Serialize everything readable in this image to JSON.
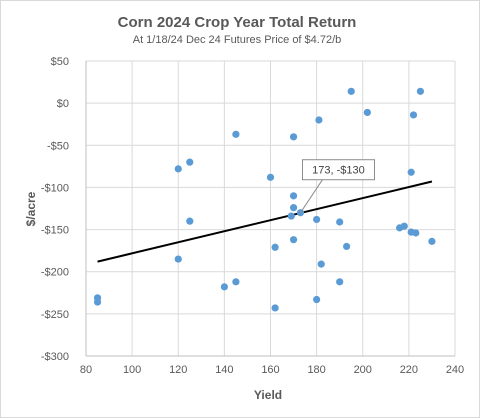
{
  "chart_data": {
    "type": "scatter",
    "title": "Corn 2024  Crop Year Total Return",
    "subtitle": "At 1/18/24 Dec 24 Futures Price of $4.72/b",
    "xlabel": "Yield",
    "ylabel": "$/acre",
    "xlim": [
      80,
      240
    ],
    "ylim": [
      -300,
      50
    ],
    "xticks": [
      80,
      100,
      120,
      140,
      160,
      180,
      200,
      220,
      240
    ],
    "yticks": [
      50,
      0,
      -50,
      -100,
      -150,
      -200,
      -250,
      -300
    ],
    "ytick_labels": [
      "$50",
      "$0",
      "-$50",
      "-$100",
      "-$150",
      "-$200",
      "-$250",
      "-$300"
    ],
    "grid": true,
    "point_color": "#5b9bd5",
    "trendline_color": "#000000",
    "points": [
      {
        "x": 85,
        "y": -231
      },
      {
        "x": 85,
        "y": -236
      },
      {
        "x": 120,
        "y": -78
      },
      {
        "x": 120,
        "y": -185
      },
      {
        "x": 125,
        "y": -70
      },
      {
        "x": 125,
        "y": -140
      },
      {
        "x": 140,
        "y": -218
      },
      {
        "x": 145,
        "y": -37
      },
      {
        "x": 145,
        "y": -212
      },
      {
        "x": 160,
        "y": -88
      },
      {
        "x": 162,
        "y": -171
      },
      {
        "x": 162,
        "y": -243
      },
      {
        "x": 169,
        "y": -134
      },
      {
        "x": 170,
        "y": -40
      },
      {
        "x": 170,
        "y": -110
      },
      {
        "x": 170,
        "y": -124
      },
      {
        "x": 170,
        "y": -162
      },
      {
        "x": 173,
        "y": -130
      },
      {
        "x": 180,
        "y": -138
      },
      {
        "x": 180,
        "y": -233
      },
      {
        "x": 181,
        "y": -20
      },
      {
        "x": 182,
        "y": -191
      },
      {
        "x": 190,
        "y": -141
      },
      {
        "x": 190,
        "y": -212
      },
      {
        "x": 193,
        "y": -170
      },
      {
        "x": 195,
        "y": 14
      },
      {
        "x": 202,
        "y": -11
      },
      {
        "x": 216,
        "y": -148
      },
      {
        "x": 218,
        "y": -146
      },
      {
        "x": 221,
        "y": -153
      },
      {
        "x": 221,
        "y": -82
      },
      {
        "x": 222,
        "y": -14
      },
      {
        "x": 223,
        "y": -154
      },
      {
        "x": 225,
        "y": 14
      },
      {
        "x": 230,
        "y": -164
      }
    ],
    "trendline": {
      "x": [
        85,
        230
      ],
      "y": [
        -188,
        -93
      ]
    },
    "annotation": {
      "text": "173, -$130",
      "x": 173,
      "y": -130
    }
  }
}
